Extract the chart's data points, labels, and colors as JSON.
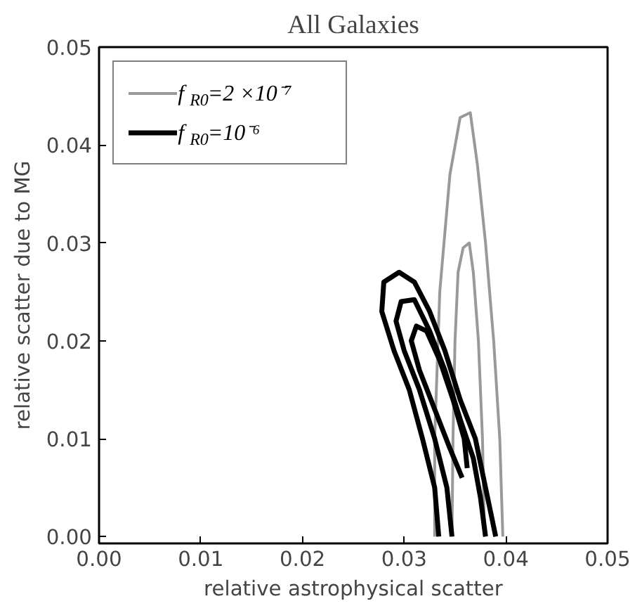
{
  "chart_data": {
    "type": "line",
    "title": "All Galaxies",
    "xlabel": "relative astrophysical scatter",
    "ylabel": "relative scatter due to MG",
    "xlim": [
      0,
      0.05
    ],
    "ylim": [
      -0.0007,
      0.05
    ],
    "xticks": [
      {
        "value": 0,
        "label": "0.00"
      },
      0.01,
      0.02,
      0.03,
      0.04,
      0.05
    ],
    "yticks": [
      {
        "value": 0,
        "label": "0.00"
      },
      0.01,
      0.02,
      0.03,
      0.04,
      0.05
    ],
    "grid": false,
    "legend": "top left",
    "marker": "none",
    "line_style": "solid",
    "series": [
      {
        "name": "f$_{R0}$=2 ×10⁻⁷",
        "color": "#999999",
        "x": [
          0.033,
          0.033,
          0.0335,
          0.0345,
          0.0355,
          0.0365,
          0.0372,
          0.038,
          0.0388,
          0.0394,
          0.0397
        ],
        "values": [
          0,
          0.01,
          0.025,
          0.037,
          0.0428,
          0.0433,
          0.038,
          0.03,
          0.02,
          0.01,
          0
        ]
      },
      {
        "color": "#999999",
        "x": [
          0.0347,
          0.0348,
          0.035,
          0.0353,
          0.0358,
          0.0364,
          0.0368,
          0.0373,
          0.0377,
          0.0379
        ],
        "values": [
          0,
          0.01,
          0.02,
          0.027,
          0.0295,
          0.03,
          0.027,
          0.02,
          0.01,
          0
        ]
      },
      {
        "name": "f$_{R0}$=10⁻⁶",
        "color": "#000000",
        "x": [
          0.0334,
          0.033,
          0.0318,
          0.0305,
          0.029,
          0.0278,
          0.028,
          0.0295,
          0.031,
          0.0325,
          0.034,
          0.0355,
          0.037,
          0.038,
          0.039
        ],
        "values": [
          0,
          0.005,
          0.01,
          0.015,
          0.019,
          0.023,
          0.026,
          0.027,
          0.026,
          0.023,
          0.019,
          0.014,
          0.01,
          0.005,
          0
        ]
      },
      {
        "color": "#000000",
        "x": [
          0.0347,
          0.0342,
          0.033,
          0.0315,
          0.03,
          0.0292,
          0.0297,
          0.031,
          0.0325,
          0.034,
          0.0355,
          0.0368,
          0.0375,
          0.038
        ],
        "values": [
          0,
          0.005,
          0.01,
          0.015,
          0.019,
          0.022,
          0.024,
          0.0242,
          0.021,
          0.017,
          0.012,
          0.008,
          0.004,
          0
        ]
      },
      {
        "color": "#000000",
        "x": [
          0.0357,
          0.0345,
          0.033,
          0.0315,
          0.0307,
          0.0312,
          0.0322,
          0.0335,
          0.0348,
          0.0359,
          0.0362
        ],
        "values": [
          0.006,
          0.009,
          0.013,
          0.017,
          0.02,
          0.0215,
          0.021,
          0.018,
          0.014,
          0.01,
          0.007
        ]
      }
    ]
  }
}
